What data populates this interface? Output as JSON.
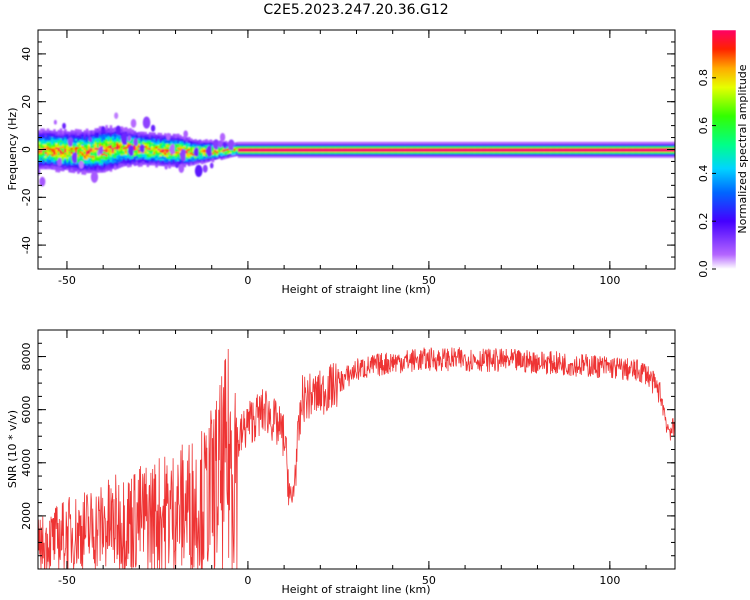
{
  "title": "C2E5.2023.247.20.36.G12",
  "chart_data": [
    {
      "type": "heatmap",
      "xlabel": "Height of straight line (km)",
      "ylabel": "Frequency (Hz)",
      "xlim": [
        -58,
        118
      ],
      "ylim": [
        -50,
        50
      ],
      "xticks": [
        -50,
        0,
        50,
        100
      ],
      "yticks": [
        -40,
        -20,
        0,
        20,
        40
      ],
      "colorbar": {
        "label": "Normalized spectral amplitude",
        "range": [
          0,
          1
        ],
        "ticks": [
          0.0,
          0.2,
          0.4,
          0.6,
          0.8
        ]
      },
      "signal_center_hz": [
        {
          "x": -55,
          "y": 0
        },
        {
          "x": -45,
          "y": -1
        },
        {
          "x": -35,
          "y": 1
        },
        {
          "x": -25,
          "y": 0
        },
        {
          "x": -15,
          "y": -1
        },
        {
          "x": -5,
          "y": 0
        },
        {
          "x": 0,
          "y": 0
        },
        {
          "x": 50,
          "y": 0
        },
        {
          "x": 100,
          "y": 0
        },
        {
          "x": 118,
          "y": 0
        }
      ],
      "spread_hz": [
        {
          "x": -55,
          "y": 6
        },
        {
          "x": -40,
          "y": 7
        },
        {
          "x": -30,
          "y": 5
        },
        {
          "x": -20,
          "y": 5
        },
        {
          "x": -10,
          "y": 3
        },
        {
          "x": -3,
          "y": 2
        },
        {
          "x": 10,
          "y": 2
        },
        {
          "x": 50,
          "y": 2
        },
        {
          "x": 100,
          "y": 2
        },
        {
          "x": 118,
          "y": 2
        }
      ]
    },
    {
      "type": "line",
      "xlabel": "Height of straight line (km)",
      "ylabel": "SNR (10 * v/v)",
      "xlim": [
        -58,
        118
      ],
      "ylim": [
        0,
        9000
      ],
      "xticks": [
        -50,
        0,
        50,
        100
      ],
      "yticks": [
        2000,
        4000,
        6000,
        8000
      ],
      "series": [
        {
          "color": "#ee3333",
          "x": [
            -58,
            -50,
            -40,
            -30,
            -20,
            -12,
            -8,
            -3,
            0,
            5,
            10,
            12,
            15,
            20,
            25,
            30,
            40,
            50,
            60,
            70,
            80,
            90,
            100,
            110,
            114,
            116,
            118
          ],
          "y": [
            900,
            1300,
            1600,
            1900,
            2200,
            2600,
            3300,
            4700,
            5500,
            6000,
            5000,
            2200,
            6400,
            6600,
            7000,
            7500,
            7800,
            7900,
            7900,
            7850,
            7800,
            7700,
            7600,
            7400,
            6600,
            5300,
            5200
          ]
        }
      ]
    }
  ]
}
